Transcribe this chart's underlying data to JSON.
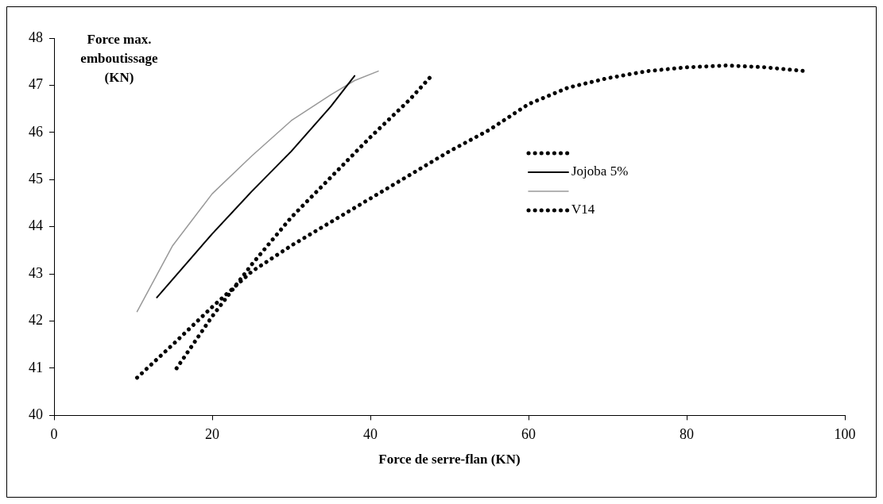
{
  "chart_data": {
    "type": "line",
    "ylabel": "Force max. emboutissage (KN)",
    "xlabel": "Force de serre-flan (KN)",
    "xlim": [
      0,
      100
    ],
    "xticks": [
      0,
      20,
      40,
      60,
      80,
      100
    ],
    "ylim": [
      40,
      48
    ],
    "yticks": [
      40,
      41,
      42,
      43,
      44,
      45,
      46,
      47,
      48
    ],
    "grid": false,
    "legend": "right",
    "marker": "none",
    "series": [
      {
        "color": "#000000",
        "line_style": "dotted",
        "x": [
          10.5,
          15,
          20,
          25,
          30,
          35,
          40,
          45,
          50,
          55,
          60,
          65,
          70,
          75,
          80,
          85,
          90,
          95
        ],
        "values": [
          40.8,
          41.5,
          42.3,
          43.05,
          43.6,
          44.1,
          44.6,
          45.1,
          45.6,
          46.05,
          46.6,
          46.95,
          47.15,
          47.3,
          47.38,
          47.42,
          47.38,
          47.3
        ]
      },
      {
        "name": "Jojoba 5%",
        "color": "#000000",
        "line_style": "solid",
        "x": [
          13,
          20,
          25,
          30,
          35,
          38
        ],
        "values": [
          42.5,
          43.85,
          44.75,
          45.6,
          46.55,
          47.2
        ]
      },
      {
        "color": "#999999",
        "line_style": "solid",
        "x": [
          10.5,
          15,
          20,
          25,
          30,
          35,
          38,
          41
        ],
        "values": [
          42.2,
          43.6,
          44.7,
          45.5,
          46.25,
          46.8,
          47.1,
          47.3
        ]
      },
      {
        "name": "V14",
        "color": "#000000",
        "line_style": "dotted",
        "x": [
          15.5,
          20,
          25,
          30,
          35,
          40,
          45,
          48
        ],
        "values": [
          41.0,
          42.1,
          43.2,
          44.2,
          45.05,
          45.9,
          46.7,
          47.25
        ]
      }
    ]
  }
}
